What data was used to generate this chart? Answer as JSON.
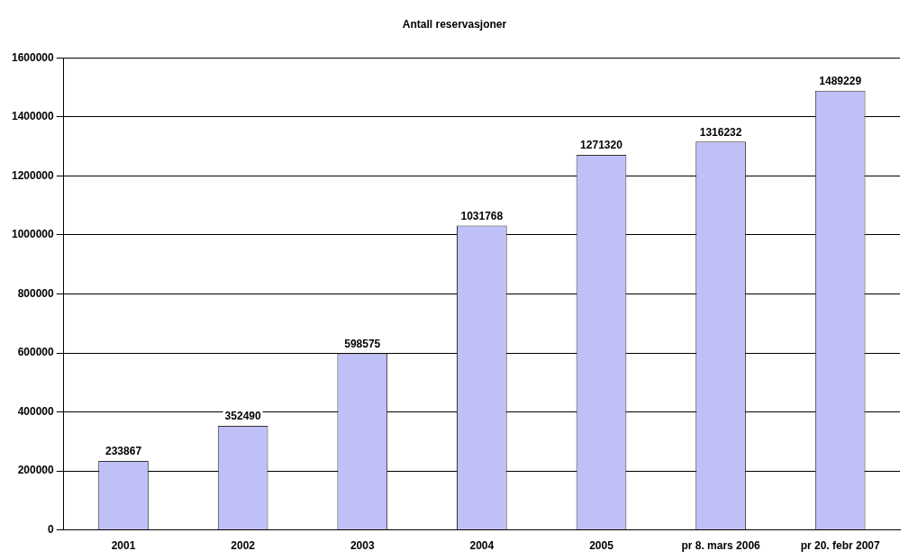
{
  "chart_data": {
    "type": "bar",
    "title": "Antall reservasjoner",
    "categories": [
      "2001",
      "2002",
      "2003",
      "2004",
      "2005",
      "pr 8. mars 2006",
      "pr 20. febr 2007"
    ],
    "values": [
      233867,
      352490,
      598575,
      1031768,
      1271320,
      1316232,
      1489229
    ],
    "color": "#c0c0f8",
    "ylim": [
      0,
      1600000
    ],
    "yticks": [
      0,
      200000,
      400000,
      600000,
      800000,
      1000000,
      1200000,
      1400000,
      1600000
    ],
    "grid": "y",
    "data_labels": true
  }
}
